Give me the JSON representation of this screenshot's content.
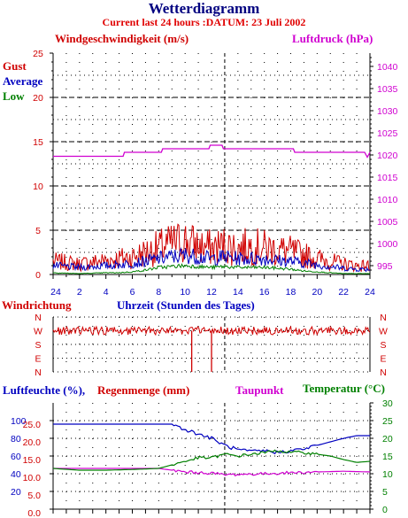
{
  "header": {
    "title": "Wetterdiagramm",
    "subtitle": "Current last 24 hours :DATUM: 23 Juli 2002"
  },
  "labels": {
    "wind": "Windgeschwindigkeit (m/s)",
    "pressure": "Luftdruck (hPa)",
    "gust": "Gust",
    "average": "Average",
    "low": "Low",
    "winddir": "Windrichtung",
    "hours": "Uhrzeit (Stunden des Tages)",
    "humidity": "Luftfeuchte (%),",
    "rain": "Regenmenge (mm)",
    "dew": "Taupunkt",
    "temperature": "Temperatur (°C)"
  },
  "colors": {
    "gust": "#d00000",
    "average": "#0000c0",
    "low": "#008000",
    "pressure": "#d000d0",
    "humidity": "#0000c0",
    "rain": "#d00000",
    "dew": "#d000d0",
    "temperature": "#008000"
  },
  "chart_data": [
    {
      "type": "line",
      "title": "Wetterdiagramm",
      "xlabel": "Uhrzeit (Stunden des Tages)",
      "x_ticks": [
        "24",
        "2",
        "4",
        "6",
        "8",
        "10",
        "12",
        "14",
        "16",
        "18",
        "20",
        "22",
        "24"
      ],
      "x_range": [
        0,
        24
      ],
      "ylabel": "Windgeschwindigkeit (m/s)",
      "ylim": [
        0,
        25
      ],
      "y_ticks": [
        "0",
        "5",
        "10",
        "15",
        "20",
        "25"
      ],
      "y2label": "Luftdruck (hPa)",
      "y2lim": [
        993,
        1043
      ],
      "y2_ticks": [
        "995",
        "1000",
        "1005",
        "1010",
        "1015",
        "1020",
        "1025",
        "1030",
        "1035",
        "1040"
      ],
      "grid": true,
      "series": [
        {
          "name": "Gust",
          "axis": "left",
          "x": [
            0,
            2,
            4,
            5,
            6,
            7,
            8,
            9,
            10,
            11,
            12,
            13,
            14,
            15,
            16,
            17,
            18,
            19,
            20,
            21,
            22,
            23
          ],
          "values": [
            1.5,
            1.2,
            1.6,
            1.8,
            2.0,
            2.5,
            3.0,
            3.5,
            3.8,
            3.2,
            3.0,
            3.3,
            3.0,
            3.2,
            3.0,
            2.8,
            2.6,
            2.2,
            1.8,
            1.5,
            1.2,
            1.0
          ]
        },
        {
          "name": "Average",
          "axis": "left",
          "x": [
            0,
            2,
            4,
            5,
            6,
            7,
            8,
            9,
            10,
            11,
            12,
            13,
            14,
            15,
            16,
            17,
            18,
            19,
            20,
            21,
            22,
            23
          ],
          "values": [
            1.0,
            0.8,
            1.0,
            1.1,
            1.3,
            1.5,
            1.8,
            2.0,
            2.2,
            2.0,
            1.8,
            2.0,
            1.8,
            1.8,
            1.8,
            1.6,
            1.5,
            1.3,
            1.1,
            0.9,
            0.7,
            0.6
          ]
        },
        {
          "name": "Low",
          "axis": "left",
          "x": [
            0,
            2,
            4,
            5,
            6,
            7,
            8,
            9,
            10,
            11,
            12,
            13,
            14,
            15,
            16,
            17,
            18,
            19,
            20,
            21,
            22,
            23
          ],
          "values": [
            0.2,
            0.1,
            0.2,
            0.2,
            0.3,
            0.5,
            0.8,
            0.9,
            1.0,
            0.9,
            0.8,
            0.9,
            0.8,
            0.8,
            0.8,
            0.7,
            0.6,
            0.4,
            0.3,
            0.2,
            0.1,
            0.1
          ]
        },
        {
          "name": "Luftdruck",
          "axis": "right",
          "x": [
            0,
            5.3,
            5.4,
            8.2,
            8.3,
            11.8,
            11.9,
            12.8,
            12.9,
            18.2,
            18.3,
            23.6,
            23.8,
            24
          ],
          "values": [
            1019.7,
            1019.7,
            1020.6,
            1020.6,
            1021.4,
            1021.4,
            1022.2,
            1022.2,
            1021.4,
            1021.4,
            1020.6,
            1020.6,
            1019.5,
            1020.6
          ]
        }
      ]
    },
    {
      "type": "line",
      "ylabel": "Windrichtung",
      "y_ticks": [
        "N",
        "W",
        "S",
        "E",
        "N"
      ],
      "x_range": [
        0,
        24
      ],
      "series": [
        {
          "name": "Windrichtung",
          "x": [
            0,
            2,
            4,
            6,
            8,
            9.5,
            10,
            10.5,
            11,
            11.5,
            12,
            12.5,
            13,
            14,
            16,
            18,
            20,
            22,
            24
          ],
          "values": [
            "W",
            "W",
            "W",
            "W",
            "W",
            "W",
            "W",
            "N",
            "W",
            "W",
            "N",
            "W",
            "W",
            "W",
            "W",
            "W",
            "W",
            "W",
            "W"
          ]
        }
      ]
    },
    {
      "type": "line",
      "x_range": [
        0,
        24
      ],
      "ylabel": "Luftfeuchte (%), Regenmenge (mm)",
      "ylim": [
        0,
        120
      ],
      "y_ticks": [
        "20",
        "40",
        "60",
        "80",
        "100"
      ],
      "y_ticks_rain": [
        "0.0",
        "5.0",
        "10.0",
        "15.0",
        "20.0",
        "25.0"
      ],
      "y2label": "Temperatur (°C)",
      "y2lim": [
        0,
        30
      ],
      "y2_ticks": [
        "0",
        "5",
        "10",
        "15",
        "20",
        "25",
        "30"
      ],
      "series": [
        {
          "name": "Luftfeuchte",
          "axis": "left",
          "x": [
            0,
            2,
            4,
            6,
            8,
            9,
            10,
            11,
            12,
            13,
            14,
            15,
            16,
            17,
            18,
            19,
            20,
            21,
            22,
            23,
            24
          ],
          "values": [
            96,
            96,
            96,
            96,
            96,
            96,
            90,
            85,
            80,
            72,
            67,
            65,
            66,
            64,
            66,
            68,
            72,
            76,
            80,
            83,
            83
          ]
        },
        {
          "name": "Taupunkt",
          "axis": "right",
          "x": [
            0,
            8,
            9,
            10,
            11,
            12,
            13,
            14,
            16,
            18,
            20,
            22,
            24
          ],
          "values": [
            11.5,
            11.5,
            11.0,
            10.5,
            10.3,
            10.2,
            9.7,
            9.8,
            10.0,
            10.3,
            10.5,
            10.7,
            10.5
          ]
        },
        {
          "name": "Temperatur",
          "axis": "right",
          "x": [
            0,
            2,
            4,
            6,
            8,
            9,
            10,
            11,
            12,
            13,
            14,
            15,
            16,
            17,
            18,
            19,
            20,
            21,
            22,
            23,
            24
          ],
          "values": [
            11.5,
            11.0,
            11.0,
            11.2,
            11.5,
            12.5,
            13.5,
            14.5,
            14.5,
            15.5,
            15.0,
            15.5,
            16.0,
            16.5,
            16.0,
            16.0,
            15.5,
            15.0,
            14.0,
            13.2,
            13.5
          ]
        }
      ]
    }
  ]
}
